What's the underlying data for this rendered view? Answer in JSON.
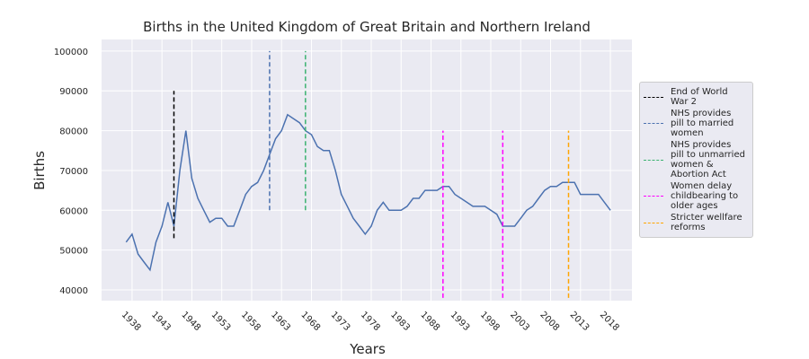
{
  "chart_data": {
    "type": "line",
    "title": "Births in the United Kingdom of Great Britain and Northern Ireland",
    "x_label": "Years",
    "y_label": "Births",
    "x": [
      1937,
      1938,
      1939,
      1940,
      1941,
      1942,
      1943,
      1944,
      1945,
      1946,
      1947,
      1948,
      1949,
      1950,
      1951,
      1952,
      1953,
      1954,
      1955,
      1956,
      1957,
      1958,
      1959,
      1960,
      1961,
      1962,
      1963,
      1964,
      1965,
      1966,
      1967,
      1968,
      1969,
      1970,
      1971,
      1972,
      1973,
      1974,
      1975,
      1976,
      1977,
      1978,
      1979,
      1980,
      1981,
      1982,
      1983,
      1984,
      1985,
      1986,
      1987,
      1988,
      1989,
      1990,
      1991,
      1992,
      1993,
      1994,
      1995,
      1996,
      1997,
      1998,
      1999,
      2000,
      2001,
      2002,
      2003,
      2004,
      2005,
      2006,
      2007,
      2008,
      2009,
      2010,
      2011,
      2012,
      2013,
      2014,
      2015,
      2016,
      2017,
      2018
    ],
    "series": [
      {
        "name": "Births",
        "color": "#4c72b0",
        "values": [
          52000,
          54000,
          49000,
          47000,
          45000,
          52000,
          56000,
          62000,
          56000,
          70000,
          80000,
          68000,
          63000,
          60000,
          57000,
          58000,
          58000,
          56000,
          56000,
          60000,
          64000,
          66000,
          67000,
          70000,
          74000,
          78000,
          80000,
          84000,
          83000,
          82000,
          80000,
          79000,
          76000,
          75000,
          75000,
          70000,
          64000,
          61000,
          58000,
          56000,
          54000,
          56000,
          60000,
          62000,
          60000,
          60000,
          60000,
          61000,
          63000,
          63000,
          65000,
          65000,
          65000,
          66000,
          66000,
          64000,
          63000,
          62000,
          61000,
          61000,
          61000,
          60000,
          59000,
          56000,
          56000,
          56000,
          58000,
          60000,
          61000,
          63000,
          65000,
          66000,
          66000,
          67000,
          67000,
          67000,
          64000,
          64000,
          64000,
          64000,
          62000,
          60000
        ]
      }
    ],
    "vlines": [
      {
        "name": "End of World War 2",
        "color": "#000000",
        "x": [
          1945
        ],
        "ymin": 53000,
        "ymax": 90000
      },
      {
        "name": "NHS provides pill to married women",
        "color": "#4c72b0",
        "x": [
          1961
        ],
        "ymin": 60000,
        "ymax": 100000
      },
      {
        "name": "NHS provides pill to unmarried women & Abortion Act",
        "color": "#3cb371",
        "x": [
          1967
        ],
        "ymin": 60000,
        "ymax": 100000
      },
      {
        "name": "Women delay childbearing to older ages",
        "color": "#ff00ff",
        "x": [
          1990,
          2000
        ],
        "ymin": 38000,
        "ymax": 80000
      },
      {
        "name": "Stricter wellfare reforms",
        "color": "#ffa500",
        "x": [
          2011
        ],
        "ymin": 38000,
        "ymax": 80000
      }
    ],
    "xlim": [
      1932.9,
      2021.6
    ],
    "ylim": [
      37300,
      102900
    ],
    "xticks": [
      1938,
      1943,
      1948,
      1953,
      1958,
      1963,
      1968,
      1973,
      1978,
      1983,
      1988,
      1993,
      1998,
      2003,
      2008,
      2013,
      2018
    ],
    "yticks": [
      40000,
      50000,
      60000,
      70000,
      80000,
      90000,
      100000
    ],
    "grid": true
  }
}
